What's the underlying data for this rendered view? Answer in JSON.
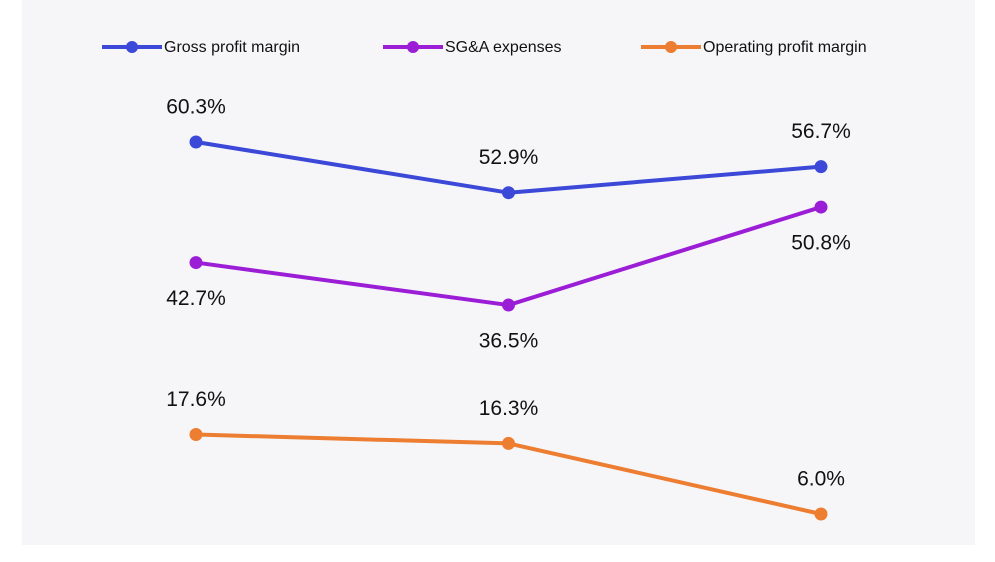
{
  "chart_data": {
    "type": "line",
    "categories": [
      null,
      null,
      null
    ],
    "series": [
      {
        "name": "Gross profit margin",
        "color": "#3b48d8",
        "values": [
          60.3,
          52.9,
          56.7
        ],
        "value_labels": [
          "60.3%",
          "52.9%",
          "56.7%"
        ]
      },
      {
        "name": "SG&A expenses",
        "color": "#9b1ed6",
        "values": [
          42.7,
          36.5,
          50.8
        ],
        "value_labels": [
          "42.7%",
          "36.5%",
          "50.8%"
        ]
      },
      {
        "name": "Operating profit margin",
        "color": "#ed7d31",
        "values": [
          17.6,
          16.3,
          6.0
        ],
        "value_labels": [
          "17.6%",
          "16.3%",
          "6.0%"
        ]
      }
    ],
    "legend": "top"
  }
}
